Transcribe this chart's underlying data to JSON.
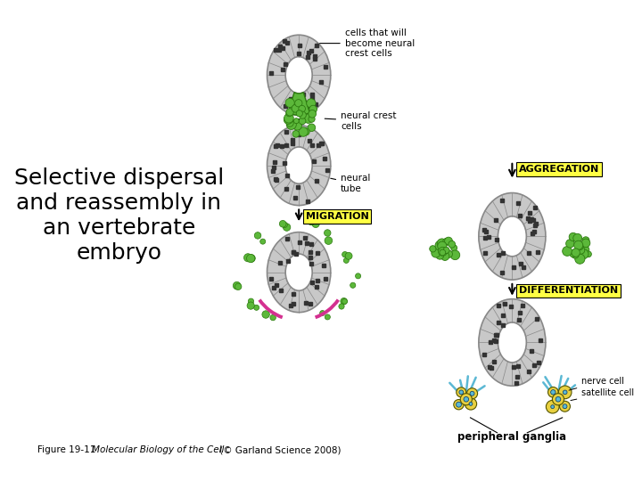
{
  "title_text": "Selective dispersal\nand reassembly in\nan vertebrate\nembryo",
  "title_fontsize": 18,
  "bg_color": "#ffffff",
  "label_cells_that_will": "cells that will\nbecome neural\ncrest cells",
  "label_neural_crest_cells": "neural crest\ncells",
  "label_neural_tube": "neural\ntube",
  "label_migration": "MIGRATION",
  "label_aggregation": "AGGREGATION",
  "label_differentiation": "DIFFERENTIATION",
  "label_nerve_cell": "nerve cell",
  "label_satellite_cell": "satellite cell",
  "label_peripheral": "peripheral ganglia",
  "gray_outer": "#c8c8c8",
  "gray_border": "#888888",
  "green_cells": "#5cb83a",
  "yellow_label": "#ffff44",
  "pink_arrow": "#d43090",
  "blue_ganglion": "#5bb8d4",
  "yellow_ganglion": "#e8d040",
  "white": "#ffffff"
}
